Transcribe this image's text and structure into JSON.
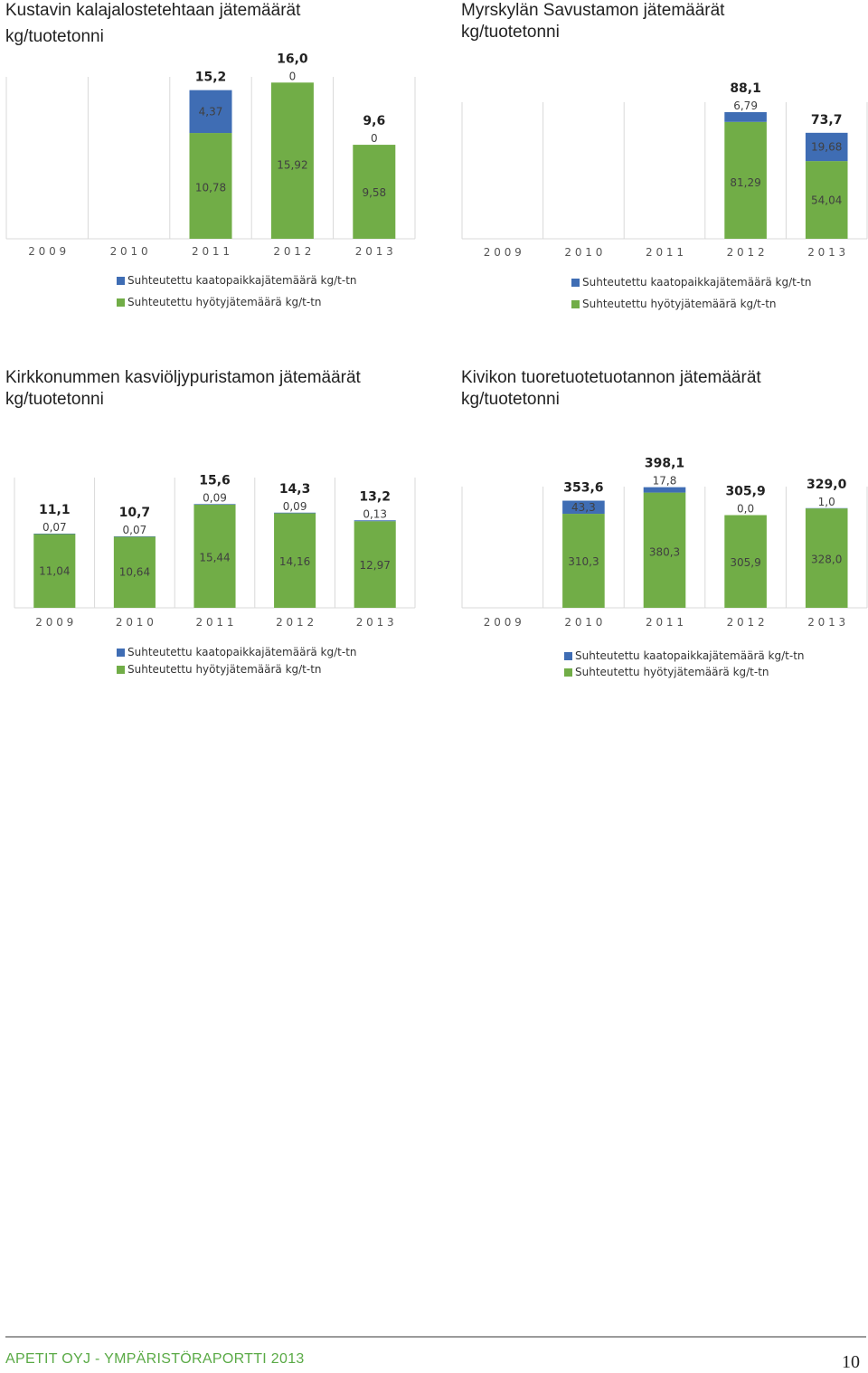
{
  "colors": {
    "landfill": "#3f6db4",
    "recycle": "#71ad47",
    "grid": "#d9d9d9",
    "axis_text": "#555555"
  },
  "chart_data": [
    {
      "type": "bar",
      "stacked": true,
      "title_line1": "Kustavin kalajalostetehtaan jätemäärät",
      "title_line2": "kg/tuotetonni",
      "categories": [
        "2 0 0 9",
        "2 0 1 0",
        "2 0 1 1",
        "2 0 1 2",
        "2 0 1 3"
      ],
      "series": [
        {
          "name": "Suhteutettu  kaatopaikkajätemäärä kg/t-tn",
          "values": [
            null,
            null,
            4.37,
            0,
            0
          ],
          "labels": [
            "",
            "",
            "4,37",
            "0",
            "0"
          ]
        },
        {
          "name": "Suhteutettu  hyötyjätemäärä kg/t-tn",
          "values": [
            null,
            null,
            10.78,
            15.92,
            9.58
          ],
          "labels": [
            "",
            "",
            "10,78",
            "15,92",
            "9,58"
          ]
        }
      ],
      "totals": [
        "",
        "",
        "15,2",
        "16,0",
        "9,6"
      ],
      "ylim": [
        0,
        16.5
      ],
      "grid": true
    },
    {
      "type": "bar",
      "stacked": true,
      "title_line1": "Myrskylän Savustamon jätemäärät",
      "title_line2": "kg/tuotetonni",
      "categories": [
        "2 0 0 9",
        "2 0 1 0",
        "2 0 1 1",
        "2 0 1 2",
        "2 0 1 3"
      ],
      "series": [
        {
          "name": "Suhteutettu  kaatopaikkajätemäärä kg/t-tn",
          "values": [
            null,
            null,
            null,
            6.79,
            19.68
          ],
          "labels": [
            "",
            "",
            "",
            "6,79",
            "19,68"
          ]
        },
        {
          "name": "Suhteutettu  hyötyjätemäärä kg/t-tn",
          "values": [
            null,
            null,
            null,
            81.29,
            54.04
          ],
          "labels": [
            "",
            "",
            "",
            "81,29",
            "54,04"
          ]
        }
      ],
      "totals": [
        "",
        "",
        "",
        "88,1",
        "73,7"
      ],
      "ylim": [
        0,
        95
      ],
      "grid": true
    },
    {
      "type": "bar",
      "stacked": true,
      "title_line1": "Kirkkonummen kasviöljypuristamon jätemäärät",
      "title_line2": "kg/tuotetonni",
      "categories": [
        "2 0 0 9",
        "2 0 1 0",
        "2 0 1 1",
        "2 0 1 2",
        "2 0 1 3"
      ],
      "series": [
        {
          "name": "Suhteutettu  kaatopaikkajätemäärä kg/t-tn",
          "values": [
            0.07,
            0.07,
            0.09,
            0.09,
            0.13
          ],
          "labels": [
            "0,07",
            "0,07",
            "0,09",
            "0,09",
            "0,13"
          ]
        },
        {
          "name": "Suhteutettu  hyötyjätemäärä kg/t-tn",
          "values": [
            11.04,
            10.64,
            15.44,
            14.16,
            12.97
          ],
          "labels": [
            "11,04",
            "10,64",
            "15,44",
            "14,16",
            "12,97"
          ]
        }
      ],
      "totals": [
        "11,1",
        "10,7",
        "15,6",
        "14,3",
        "13,2"
      ],
      "ylim": [
        0,
        19.5
      ],
      "grid": true
    },
    {
      "type": "bar",
      "stacked": true,
      "title_line1": "Kivikon tuoretuotetuotannon jätemäärät",
      "title_line2": "kg/tuotetonni",
      "categories": [
        "2 0 0 9",
        "2 0 1 0",
        "2 0 1 1",
        "2 0 1 2",
        "2 0 1 3"
      ],
      "series": [
        {
          "name": "Suhteutettu  kaatopaikkajätemäärä kg/t-tn",
          "values": [
            null,
            43.3,
            17.8,
            0.0,
            1.0
          ],
          "labels": [
            "",
            "43,3",
            "17,8",
            "0,0",
            "1,0"
          ]
        },
        {
          "name": "Suhteutettu  hyötyjätemäärä kg/t-tn",
          "values": [
            null,
            310.3,
            380.3,
            305.9,
            328.0
          ],
          "labels": [
            "",
            "310,3",
            "380,3",
            "305,9",
            "328,0"
          ]
        }
      ],
      "totals": [
        "",
        "353,6",
        "398,1",
        "305,9",
        "329,0"
      ],
      "ylim": [
        0,
        400
      ],
      "grid": true
    }
  ],
  "footer": {
    "report": "APETIT OYJ  -  YMPÄRISTÖRAPORTTI 2013",
    "page": "10"
  }
}
